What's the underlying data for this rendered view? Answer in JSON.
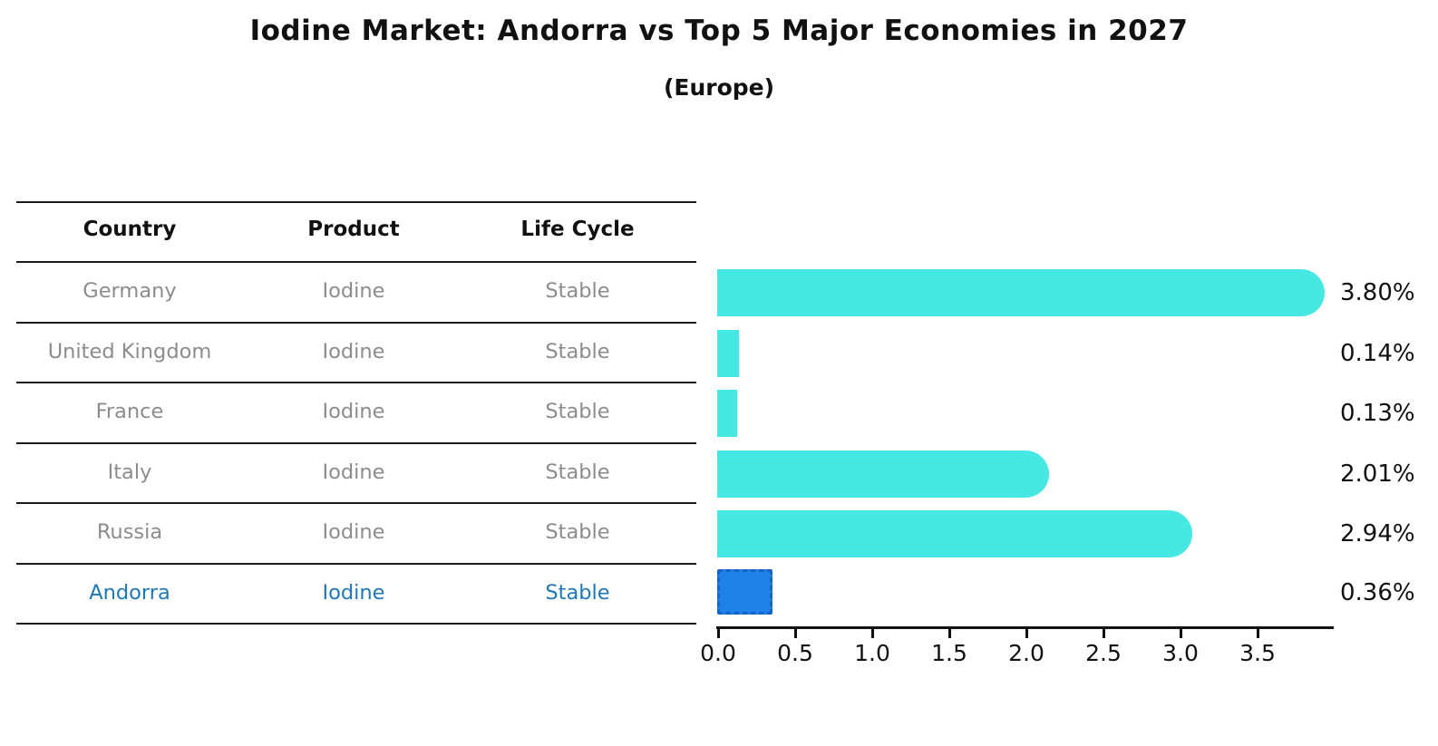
{
  "title": "Iodine Market: Andorra vs Top 5 Major Economies in 2027",
  "subtitle": "(Europe)",
  "table": {
    "headers": [
      "Country",
      "Product",
      "Life Cycle"
    ],
    "rows": [
      {
        "country": "Germany",
        "product": "Iodine",
        "life_cycle": "Stable",
        "highlight": false
      },
      {
        "country": "United Kingdom",
        "product": "Iodine",
        "life_cycle": "Stable",
        "highlight": false
      },
      {
        "country": "France",
        "product": "Iodine",
        "life_cycle": "Stable",
        "highlight": false
      },
      {
        "country": "Italy",
        "product": "Iodine",
        "life_cycle": "Stable",
        "highlight": false
      },
      {
        "country": "Russia",
        "product": "Iodine",
        "life_cycle": "Stable",
        "highlight": false
      },
      {
        "country": "Andorra",
        "product": "Iodine",
        "life_cycle": "Stable",
        "highlight": true
      }
    ]
  },
  "chart_data": {
    "type": "bar",
    "orientation": "horizontal",
    "title": "Iodine Market: Andorra vs Top 5 Major Economies in 2027",
    "subtitle": "(Europe)",
    "categories": [
      "Germany",
      "United Kingdom",
      "France",
      "Italy",
      "Russia",
      "Andorra"
    ],
    "values": [
      3.8,
      0.14,
      0.13,
      2.01,
      2.94,
      0.36
    ],
    "value_labels": [
      "3.80%",
      "0.14%",
      "0.13%",
      "2.01%",
      "2.94%",
      "0.36%"
    ],
    "x_ticks": [
      "0.0",
      "0.5",
      "1.0",
      "1.5",
      "2.0",
      "2.5",
      "3.0",
      "3.5"
    ],
    "xlim": [
      0,
      4.0
    ],
    "grid": false,
    "legend": false,
    "bar_color": "#45e8e2",
    "highlight_bar_color": "#1e82e8",
    "highlight_border_color": "#1565c8",
    "highlight_index": 5,
    "highlight_text_color": "#1f77b4",
    "row_text_color": "#8c8c8c"
  }
}
